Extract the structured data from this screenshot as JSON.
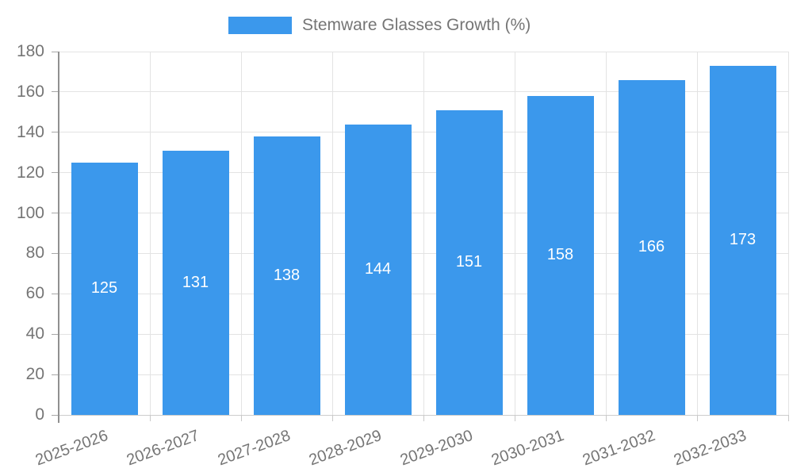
{
  "legend": {
    "label": "Stemware Glasses Growth (%)"
  },
  "chart_data": {
    "type": "bar",
    "title": "",
    "categories": [
      "2025-2026",
      "2026-2027",
      "2027-2028",
      "2028-2029",
      "2029-2030",
      "2030-2031",
      "2031-2032",
      "2032-2033"
    ],
    "series": [
      {
        "name": "Stemware Glasses Growth (%)",
        "values": [
          125,
          131,
          138,
          144,
          151,
          158,
          166,
          173
        ]
      }
    ],
    "value_labels": [
      "125",
      "131",
      "138",
      "144",
      "151",
      "158",
      "166",
      "173"
    ],
    "yticks": [
      0,
      20,
      40,
      60,
      80,
      100,
      120,
      140,
      160,
      180
    ],
    "ylim": [
      0,
      180
    ],
    "xlabel": "",
    "ylabel": "",
    "grid": true,
    "legend_position": "top-center",
    "bar_color": "#3b98ec",
    "value_label_color": "#ffffff",
    "axis_label_color": "#757575",
    "grid_color": "#e3e3e3",
    "baseline_color": "#cccccc",
    "axis_line_color": "#909090",
    "tick_color": "#c9c9c9"
  }
}
